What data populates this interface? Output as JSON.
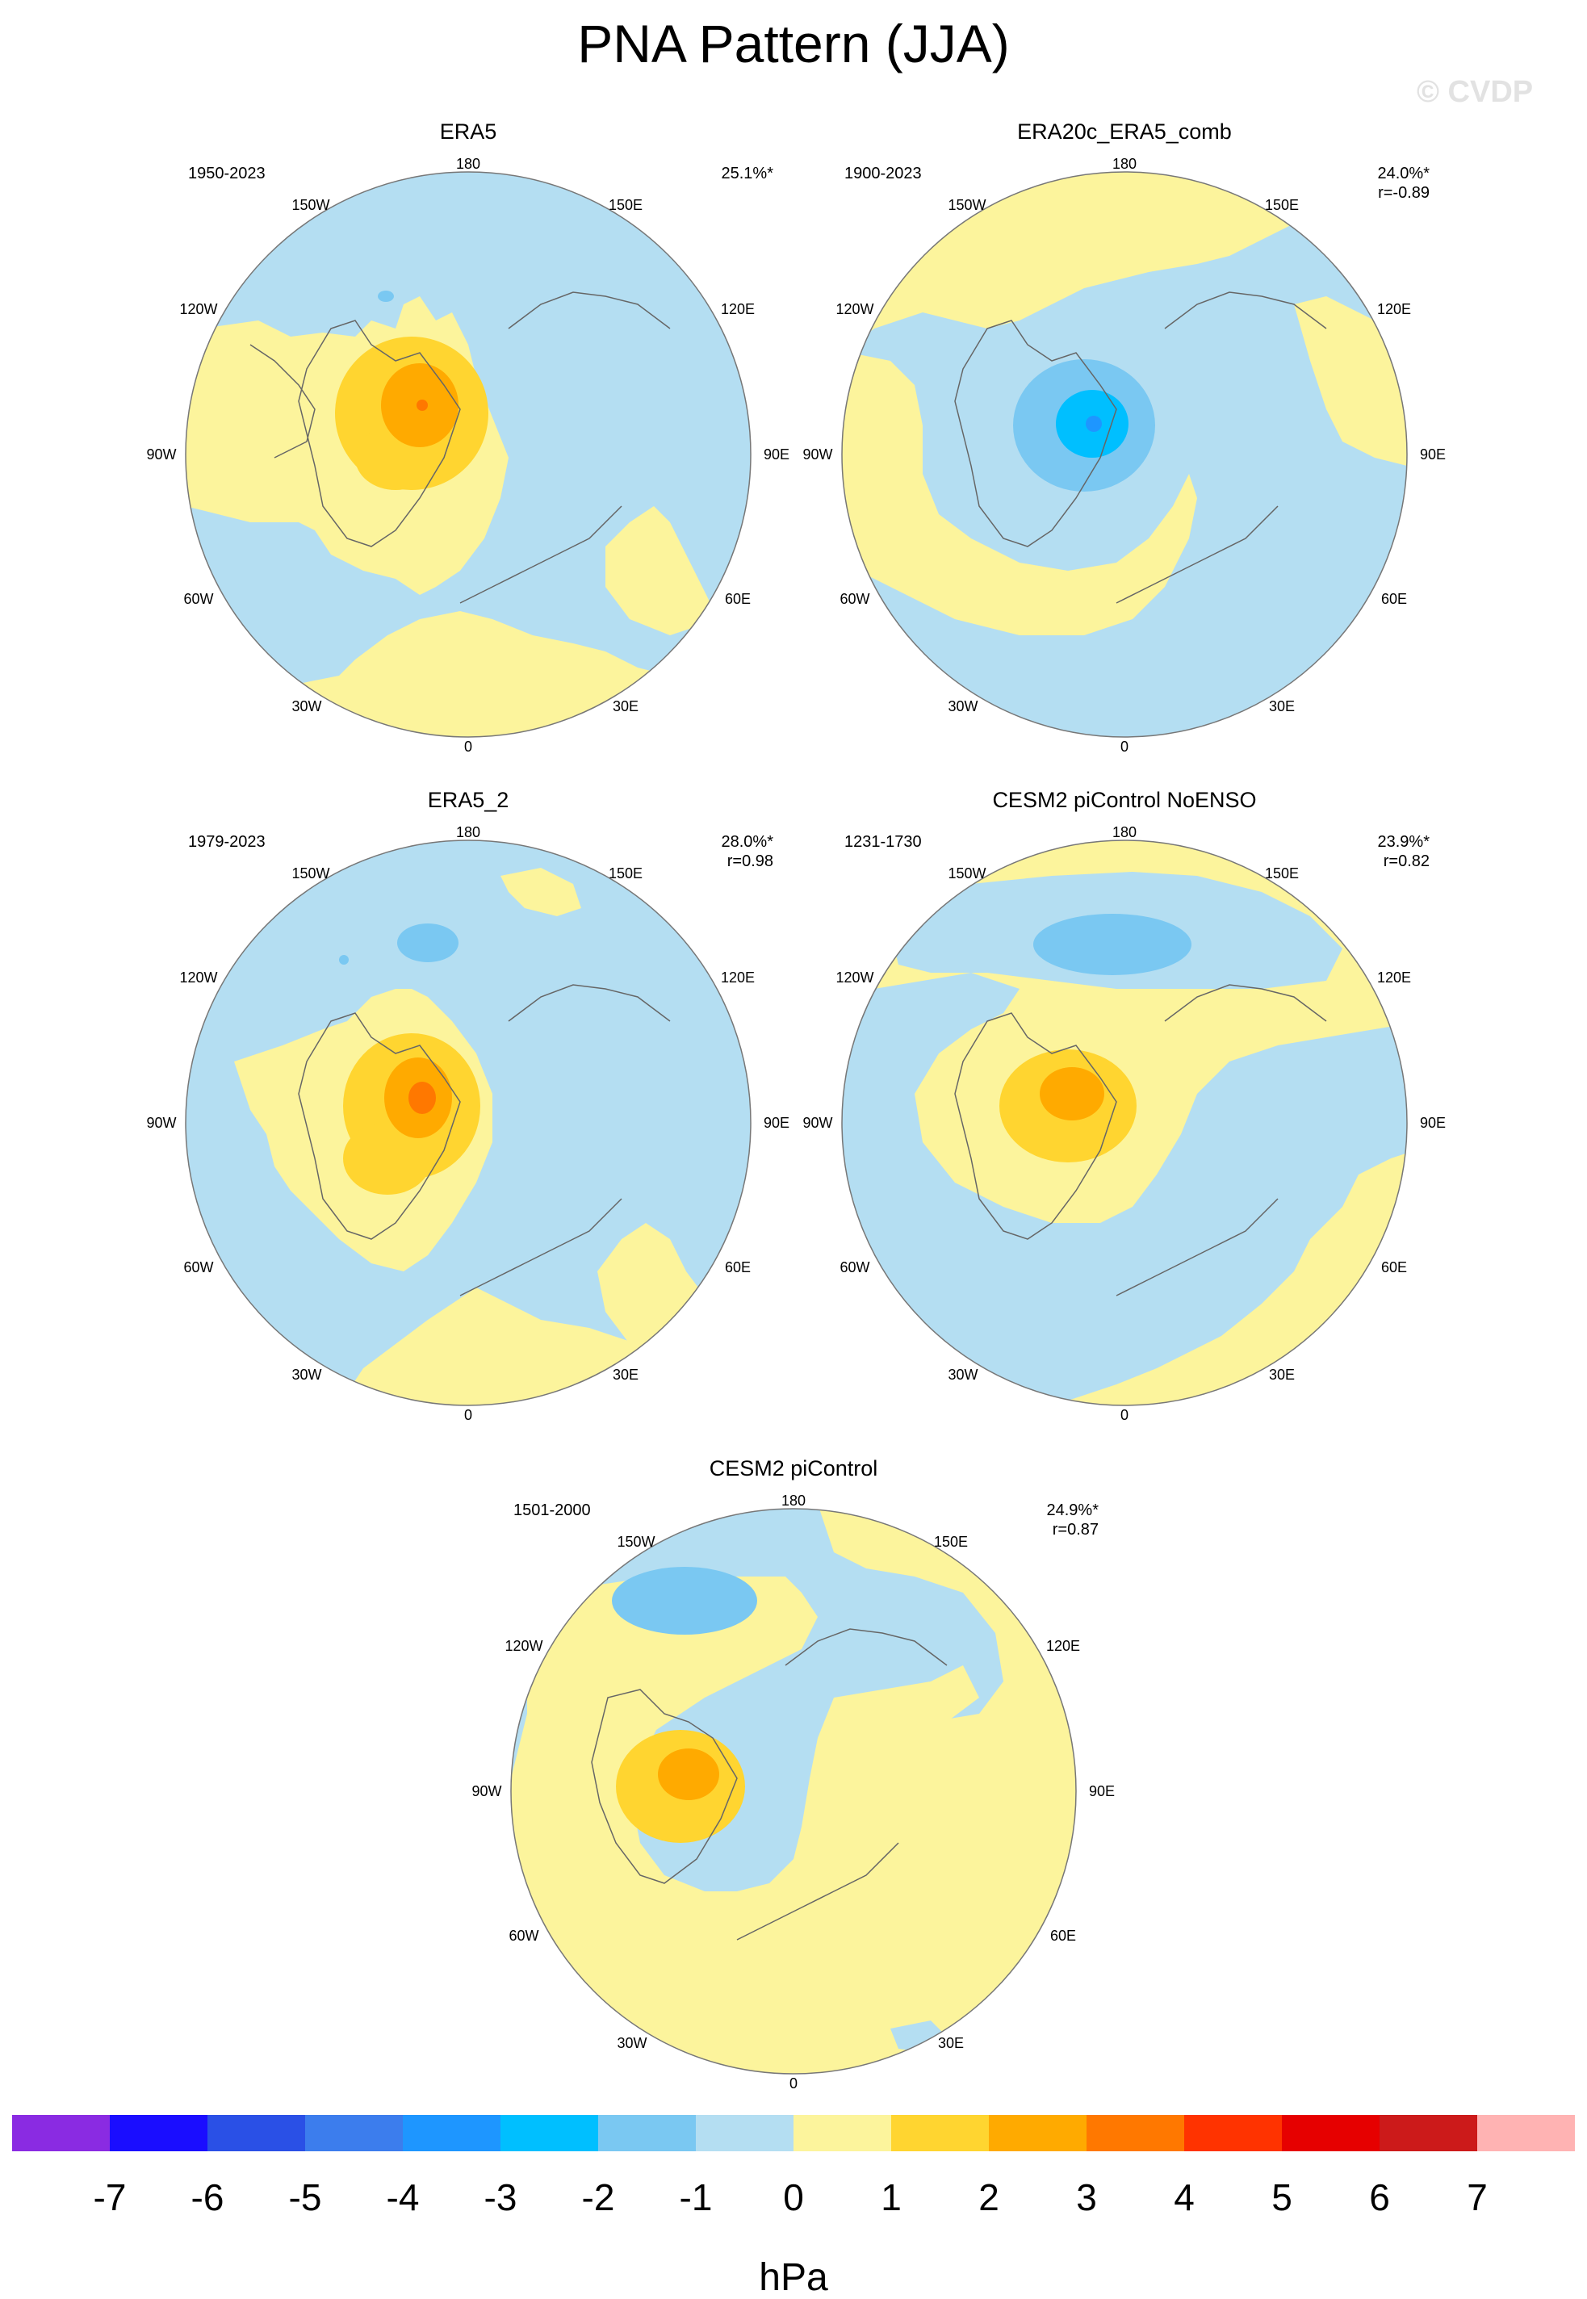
{
  "title": "PNA Pattern (JJA)",
  "watermark": "© CVDP",
  "panels": [
    {
      "title": "ERA5",
      "period": "1950-2023",
      "pct": "25.1%*",
      "r": ""
    },
    {
      "title": "ERA20c_ERA5_comb",
      "period": "1900-2023",
      "pct": "24.0%*",
      "r": "r=-0.89"
    },
    {
      "title": "ERA5_2",
      "period": "1979-2023",
      "pct": "28.0%*",
      "r": "r=0.98"
    },
    {
      "title": "CESM2 piControl NoENSO",
      "period": "1231-1730",
      "pct": "23.9%*",
      "r": "r=0.82"
    },
    {
      "title": "CESM2 piControl",
      "period": "1501-2000",
      "pct": "24.9%*",
      "r": "r=0.87"
    }
  ],
  "longitude_labels": [
    "180",
    "150E",
    "120E",
    "90E",
    "60E",
    "30E",
    "0",
    "30W",
    "60W",
    "90W",
    "120W",
    "150W"
  ],
  "colorbar": {
    "colors": [
      "#8a2be2",
      "#1a0dff",
      "#2a50e6",
      "#3c7ded",
      "#1e96ff",
      "#00bfff",
      "#7ac8f2",
      "#b4def2",
      "#fcf49c",
      "#ffd530",
      "#ffaa00",
      "#ff7800",
      "#ff3300",
      "#e60000",
      "#cc1a1a",
      "#ffb3b3"
    ],
    "labels": [
      "-7",
      "-6",
      "-5",
      "-4",
      "-3",
      "-2",
      "-1",
      "0",
      "1",
      "2",
      "3",
      "4",
      "5",
      "6",
      "7"
    ],
    "units": "hPa"
  }
}
